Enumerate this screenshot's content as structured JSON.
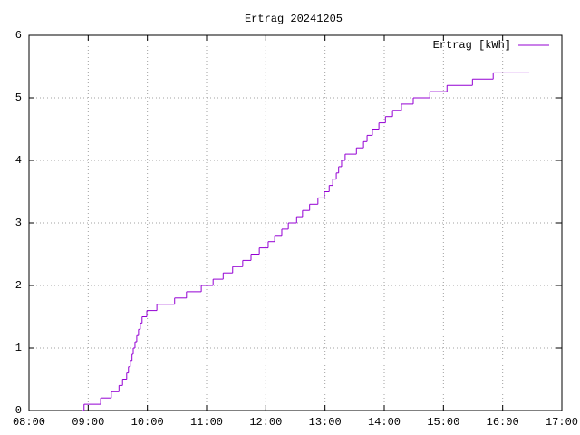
{
  "chart_data": {
    "type": "step-line",
    "title": "Ertrag 20241205",
    "series": [
      {
        "name": "Ertrag [kWh]",
        "color": "#9400d3",
        "x": [
          8.89,
          8.93,
          9.21,
          9.39,
          9.52,
          9.58,
          9.65,
          9.68,
          9.71,
          9.74,
          9.76,
          9.79,
          9.82,
          9.85,
          9.88,
          9.91,
          9.99,
          10.16,
          10.46,
          10.66,
          10.91,
          11.11,
          11.28,
          11.44,
          11.61,
          11.75,
          11.89,
          12.04,
          12.15,
          12.27,
          12.38,
          12.52,
          12.62,
          12.74,
          12.88,
          12.99,
          13.07,
          13.13,
          13.19,
          13.23,
          13.28,
          13.34,
          13.53,
          13.65,
          13.71,
          13.8,
          13.91,
          14.02,
          14.14,
          14.29,
          14.49,
          14.77,
          15.06,
          15.49,
          15.84,
          16.45
        ],
        "values": [
          0,
          0.1,
          0.2,
          0.3,
          0.4,
          0.5,
          0.6,
          0.7,
          0.8,
          0.9,
          1.0,
          1.1,
          1.2,
          1.3,
          1.4,
          1.5,
          1.6,
          1.7,
          1.8,
          1.9,
          2.0,
          2.1,
          2.2,
          2.3,
          2.4,
          2.5,
          2.6,
          2.7,
          2.8,
          2.9,
          3.0,
          3.1,
          3.2,
          3.3,
          3.4,
          3.5,
          3.6,
          3.7,
          3.8,
          3.9,
          4.0,
          4.1,
          4.2,
          4.3,
          4.4,
          4.5,
          4.6,
          4.7,
          4.8,
          4.9,
          5.0,
          5.1,
          5.2,
          5.3,
          5.4,
          5.4
        ]
      }
    ],
    "xlim": [
      8,
      17
    ],
    "xticks": [
      {
        "value": 8,
        "label": "08:00"
      },
      {
        "value": 9,
        "label": "09:00"
      },
      {
        "value": 10,
        "label": "10:00"
      },
      {
        "value": 11,
        "label": "11:00"
      },
      {
        "value": 12,
        "label": "12:00"
      },
      {
        "value": 13,
        "label": "13:00"
      },
      {
        "value": 14,
        "label": "14:00"
      },
      {
        "value": 15,
        "label": "15:00"
      },
      {
        "value": 16,
        "label": "16:00"
      },
      {
        "value": 17,
        "label": "17:00"
      }
    ],
    "ylim": [
      0,
      6
    ],
    "yticks": [
      0,
      1,
      2,
      3,
      4,
      5,
      6
    ],
    "grid": true,
    "legend": "top-right"
  }
}
